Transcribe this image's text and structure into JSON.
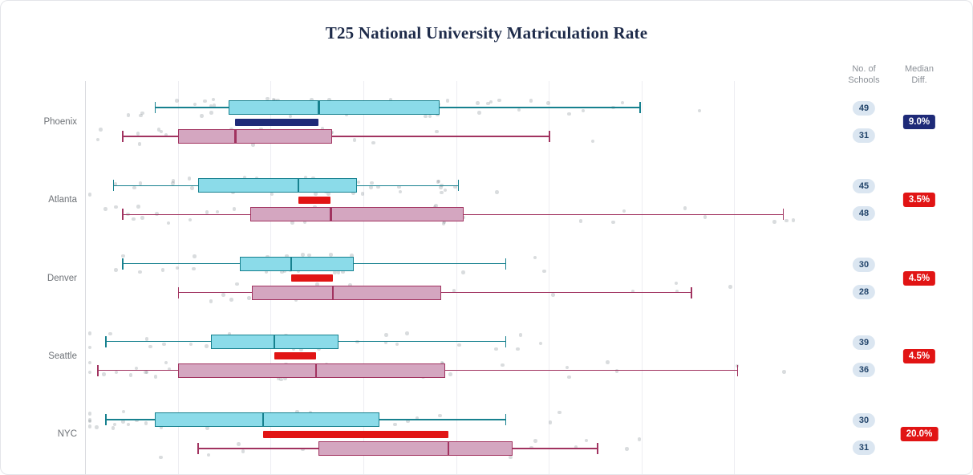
{
  "title": "T25 National University Matriculation Rate",
  "columns": {
    "schools": {
      "line1": "No. of",
      "line2": "Schools"
    },
    "median_diff": {
      "line1": "Median",
      "line2": "Diff."
    }
  },
  "colors": {
    "cyan_fill": "#8bdbe9",
    "cyan_stroke": "#17818f",
    "pink_fill": "#d4a6c0",
    "pink_stroke": "#a13360",
    "navy": "#1e2a78",
    "red": "#e11414",
    "count_badge_bg": "#dbe6f1",
    "count_badge_text": "#23456b",
    "gridline": "#ededf2",
    "title_color": "#1e2b4a"
  },
  "chart_data": {
    "type": "boxplot",
    "title": "T25 National University Matriculation Rate",
    "xlabel": "",
    "ylabel": "",
    "x_axis": {
      "min": 0,
      "max": 80,
      "grid_step": 10,
      "tick_labels_visible": false
    },
    "legend": null,
    "series_names": [
      "cyan",
      "pink"
    ],
    "groups": [
      {
        "city": "Phoenix",
        "series_a": {
          "low": 7.5,
          "q1": 15.5,
          "median": 25.2,
          "q3": 38.2,
          "high": 59.8
        },
        "series_b": {
          "low": 4.0,
          "q1": 10.0,
          "median": 16.2,
          "q3": 26.6,
          "high": 50.0
        },
        "n_schools_a": 49,
        "n_schools_b": 31,
        "median_diff": "9.0%",
        "diff_style": "navy"
      },
      {
        "city": "Atlanta",
        "series_a": {
          "low": 3.0,
          "q1": 12.2,
          "median": 23.0,
          "q3": 29.3,
          "high": 40.2
        },
        "series_b": {
          "low": 4.0,
          "q1": 17.8,
          "median": 26.5,
          "q3": 40.8,
          "high": 75.2
        },
        "n_schools_a": 45,
        "n_schools_b": 48,
        "median_diff": "3.5%",
        "diff_style": "red"
      },
      {
        "city": "Denver",
        "series_a": {
          "low": 4.0,
          "q1": 16.7,
          "median": 22.2,
          "q3": 29.0,
          "high": 45.3
        },
        "series_b": {
          "low": 10.0,
          "q1": 18.0,
          "median": 26.7,
          "q3": 38.4,
          "high": 65.3
        },
        "n_schools_a": 30,
        "n_schools_b": 28,
        "median_diff": "4.5%",
        "diff_style": "red"
      },
      {
        "city": "Seattle",
        "series_a": {
          "low": 2.2,
          "q1": 13.6,
          "median": 20.4,
          "q3": 27.3,
          "high": 45.3
        },
        "series_b": {
          "low": 1.3,
          "q1": 10.0,
          "median": 24.9,
          "q3": 38.8,
          "high": 70.3
        },
        "n_schools_a": 39,
        "n_schools_b": 36,
        "median_diff": "4.5%",
        "diff_style": "red"
      },
      {
        "city": "NYC",
        "series_a": {
          "low": 2.2,
          "q1": 7.5,
          "median": 19.2,
          "q3": 31.7,
          "high": 45.3
        },
        "series_b": {
          "low": 12.1,
          "q1": 25.2,
          "median": 39.2,
          "q3": 46.1,
          "high": 55.2
        },
        "n_schools_a": 30,
        "n_schools_b": 31,
        "median_diff": "20.0%",
        "diff_style": "red"
      }
    ]
  }
}
